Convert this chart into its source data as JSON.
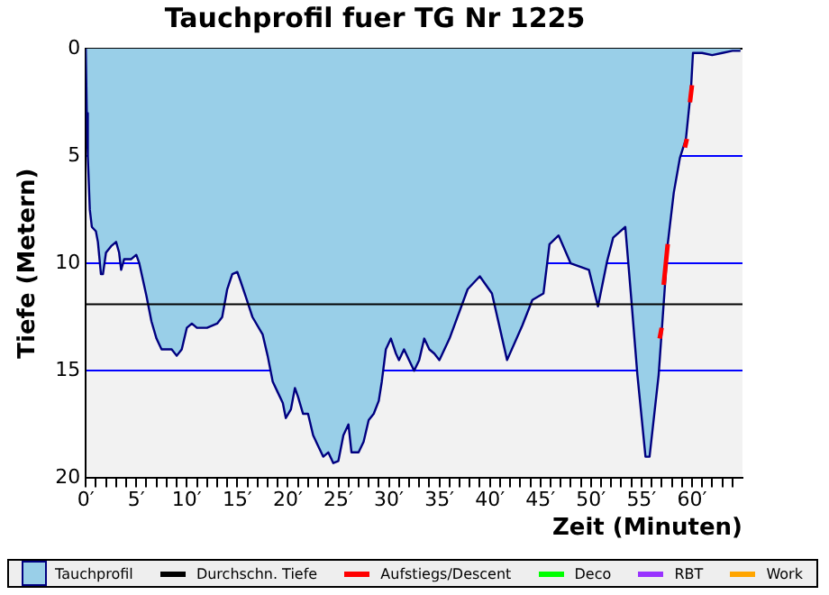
{
  "chart_data": {
    "type": "area",
    "title": "Tauchprofil fuer TG Nr 1225",
    "xlabel": "Zeit (Minuten)",
    "ylabel": "Tiefe (Metern)",
    "xlim": [
      0,
      65
    ],
    "ylim": [
      20,
      0
    ],
    "xticks": [
      {
        "value": 0,
        "label": "0′"
      },
      {
        "value": 1,
        "label": null
      },
      {
        "value": 2,
        "label": null
      },
      {
        "value": 3,
        "label": null
      },
      {
        "value": 4,
        "label": null
      },
      {
        "value": 5,
        "label": "5′"
      },
      {
        "value": 6,
        "label": null
      },
      {
        "value": 7,
        "label": null
      },
      {
        "value": 8,
        "label": null
      },
      {
        "value": 9,
        "label": null
      },
      {
        "value": 10,
        "label": "10′"
      },
      {
        "value": 11,
        "label": null
      },
      {
        "value": 12,
        "label": null
      },
      {
        "value": 13,
        "label": null
      },
      {
        "value": 14,
        "label": null
      },
      {
        "value": 15,
        "label": "15′"
      },
      {
        "value": 16,
        "label": null
      },
      {
        "value": 17,
        "label": null
      },
      {
        "value": 18,
        "label": null
      },
      {
        "value": 19,
        "label": null
      },
      {
        "value": 20,
        "label": "20′"
      },
      {
        "value": 21,
        "label": null
      },
      {
        "value": 22,
        "label": null
      },
      {
        "value": 23,
        "label": null
      },
      {
        "value": 24,
        "label": null
      },
      {
        "value": 25,
        "label": "25′"
      },
      {
        "value": 26,
        "label": null
      },
      {
        "value": 27,
        "label": null
      },
      {
        "value": 28,
        "label": null
      },
      {
        "value": 29,
        "label": null
      },
      {
        "value": 30,
        "label": "30′"
      },
      {
        "value": 31,
        "label": null
      },
      {
        "value": 32,
        "label": null
      },
      {
        "value": 33,
        "label": null
      },
      {
        "value": 34,
        "label": null
      },
      {
        "value": 35,
        "label": "35′"
      },
      {
        "value": 36,
        "label": null
      },
      {
        "value": 37,
        "label": null
      },
      {
        "value": 38,
        "label": null
      },
      {
        "value": 39,
        "label": null
      },
      {
        "value": 40,
        "label": "40′"
      },
      {
        "value": 41,
        "label": null
      },
      {
        "value": 42,
        "label": null
      },
      {
        "value": 43,
        "label": null
      },
      {
        "value": 44,
        "label": null
      },
      {
        "value": 45,
        "label": "45′"
      },
      {
        "value": 46,
        "label": null
      },
      {
        "value": 47,
        "label": null
      },
      {
        "value": 48,
        "label": null
      },
      {
        "value": 49,
        "label": null
      },
      {
        "value": 50,
        "label": "50′"
      },
      {
        "value": 51,
        "label": null
      },
      {
        "value": 52,
        "label": null
      },
      {
        "value": 53,
        "label": null
      },
      {
        "value": 54,
        "label": null
      },
      {
        "value": 55,
        "label": "55′"
      },
      {
        "value": 56,
        "label": null
      },
      {
        "value": 57,
        "label": null
      },
      {
        "value": 58,
        "label": null
      },
      {
        "value": 59,
        "label": null
      },
      {
        "value": 60,
        "label": "60′"
      },
      {
        "value": 61,
        "label": null
      },
      {
        "value": 62,
        "label": null
      },
      {
        "value": 63,
        "label": null
      },
      {
        "value": 64,
        "label": null
      }
    ],
    "yticks": [
      0,
      5,
      10,
      15,
      20
    ],
    "grid": "y",
    "legend": "bottom",
    "marker": "none",
    "ref_lines": [
      {
        "axis": "y",
        "value": 11.9,
        "label": "Durchschn. Tiefe",
        "color": "#000000"
      }
    ],
    "series": [
      {
        "name": "Tauchprofil",
        "color": "#99cfe8",
        "x": [
          0,
          0.1,
          0.2,
          0.4,
          0.6,
          1,
          1.2,
          1.5,
          1.7,
          2,
          2.5,
          3,
          3.3,
          3.5,
          3.8,
          4.5,
          5,
          5.3,
          6,
          6.5,
          7,
          7.5,
          8.5,
          9,
          9.5,
          10,
          10.5,
          11,
          12,
          13,
          13.5,
          14,
          14.5,
          15,
          15.3,
          15.8,
          16.5,
          17.5,
          18,
          18.5,
          19,
          19.5,
          19.8,
          20.3,
          20.7,
          21,
          21.5,
          22,
          22.5,
          23,
          23.5,
          24,
          24.5,
          25,
          25.5,
          26,
          26.3,
          27,
          27.5,
          28,
          28.5,
          29,
          29.3,
          29.7,
          30.2,
          30.7,
          31,
          31.5,
          32,
          32.5,
          33,
          33.5,
          34,
          34.5,
          35,
          36,
          37.8,
          39,
          40.2,
          41.7,
          43.2,
          44.2,
          45.3,
          45.9,
          46.8,
          48,
          49.8,
          50.7,
          51.6,
          52.2,
          53.4,
          54,
          54.6,
          55.4,
          55.8,
          56.7,
          57.3,
          57.6,
          58.2,
          58.8,
          59.4,
          59.9,
          60.1,
          61,
          62,
          63,
          64,
          64.8
        ],
        "values": [
          0,
          3,
          5,
          7.5,
          8.3,
          8.5,
          9,
          10.5,
          10.5,
          9.5,
          9.2,
          9,
          9.5,
          10.3,
          9.8,
          9.8,
          9.6,
          10,
          11.5,
          12.7,
          13.5,
          14,
          14,
          14.3,
          14,
          13,
          12.8,
          13,
          13,
          12.8,
          12.5,
          11.2,
          10.5,
          10.4,
          10.8,
          11.5,
          12.5,
          13.3,
          14.3,
          15.5,
          16,
          16.5,
          17.2,
          16.8,
          15.8,
          16.2,
          17,
          17,
          18,
          18.5,
          19,
          18.8,
          19.3,
          19.2,
          18,
          17.5,
          18.8,
          18.8,
          18.3,
          17.3,
          17,
          16.4,
          15.5,
          14,
          13.5,
          14.2,
          14.5,
          14,
          14.5,
          15,
          14.5,
          13.5,
          14,
          14.2,
          14.5,
          13.5,
          11.2,
          10.6,
          11.4,
          14.5,
          12.9,
          11.7,
          11.4,
          9.1,
          8.7,
          10,
          10.3,
          12,
          9.9,
          8.8,
          8.3,
          11.7,
          15.2,
          19,
          19,
          15.2,
          11.2,
          9.1,
          6.7,
          5.1,
          4.2,
          1.9,
          0.2,
          0.2,
          0.3,
          0.2,
          0.1,
          0.1
        ]
      },
      {
        "name": "Aufstiegs/Descent",
        "type": "line",
        "color": "#ff0000",
        "x": [
          56.8,
          57.0,
          57.05,
          57.2,
          57.6,
          57.65,
          59.3,
          59.5,
          59.55,
          59.8,
          60.0
        ],
        "values": [
          13.5,
          13.0,
          null,
          11,
          9.1,
          null,
          4.6,
          4.2,
          null,
          2.5,
          1.7
        ]
      },
      {
        "name": "Deco",
        "type": "line",
        "color": "#00ff00"
      },
      {
        "name": "RBT",
        "type": "line",
        "color": "#9933ff"
      },
      {
        "name": "Work",
        "type": "line",
        "color": "#ffa500"
      }
    ]
  }
}
